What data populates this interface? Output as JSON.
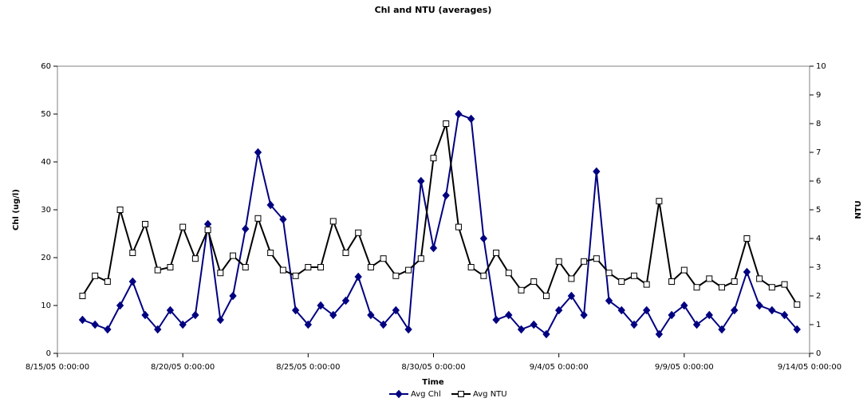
{
  "chart_data": {
    "type": "line",
    "title": "Chl and NTU (averages)",
    "x_label": "Time",
    "y_label": "Chl (ug/l)",
    "y2_label": "NTU",
    "xlim": [
      "8/15/05 0:00:00",
      "9/14/05 0:00:00"
    ],
    "xticks": [
      "8/15/05 0:00:00",
      "8/20/05 0:00:00",
      "8/25/05 0:00:00",
      "8/30/05 0:00:00",
      "9/4/05 0:00:00",
      "9/9/05 0:00:00",
      "9/14/05 0:00:00"
    ],
    "ylim": [
      0,
      60
    ],
    "yticks": [
      0,
      10,
      20,
      30,
      40,
      50,
      60
    ],
    "y2lim": [
      0,
      10
    ],
    "y2ticks": [
      0,
      1,
      2,
      3,
      4,
      5,
      6,
      7,
      8,
      9,
      10
    ],
    "x": [
      "8/16/05 0:00:00",
      "8/16/05 12:00:00",
      "8/17/05 0:00:00",
      "8/17/05 12:00:00",
      "8/18/05 0:00:00",
      "8/18/05 12:00:00",
      "8/19/05 0:00:00",
      "8/19/05 12:00:00",
      "8/20/05 0:00:00",
      "8/20/05 12:00:00",
      "8/21/05 0:00:00",
      "8/21/05 12:00:00",
      "8/22/05 0:00:00",
      "8/22/05 12:00:00",
      "8/23/05 0:00:00",
      "8/23/05 12:00:00",
      "8/24/05 0:00:00",
      "8/24/05 12:00:00",
      "8/25/05 0:00:00",
      "8/25/05 12:00:00",
      "8/26/05 0:00:00",
      "8/26/05 12:00:00",
      "8/27/05 0:00:00",
      "8/27/05 12:00:00",
      "8/28/05 0:00:00",
      "8/28/05 12:00:00",
      "8/29/05 0:00:00",
      "8/29/05 12:00:00",
      "8/30/05 0:00:00",
      "8/30/05 12:00:00",
      "8/31/05 0:00:00",
      "8/31/05 12:00:00",
      "9/1/05 0:00:00",
      "9/1/05 12:00:00",
      "9/2/05 0:00:00",
      "9/2/05 12:00:00",
      "9/3/05 0:00:00",
      "9/3/05 12:00:00",
      "9/4/05 0:00:00",
      "9/4/05 12:00:00",
      "9/5/05 0:00:00",
      "9/5/05 12:00:00",
      "9/6/05 0:00:00",
      "9/6/05 12:00:00",
      "9/7/05 0:00:00",
      "9/7/05 12:00:00",
      "9/8/05 0:00:00",
      "9/8/05 12:00:00",
      "9/9/05 0:00:00",
      "9/9/05 12:00:00",
      "9/10/05 0:00:00",
      "9/10/05 12:00:00",
      "9/11/05 0:00:00",
      "9/11/05 12:00:00",
      "9/12/05 0:00:00",
      "9/12/05 12:00:00",
      "9/13/05 0:00:00",
      "9/13/05 12:00:00"
    ],
    "series": [
      {
        "name": "Avg Chl",
        "color": "#000080",
        "marker": "diamond",
        "values": [
          7,
          6,
          5,
          10,
          15,
          8,
          5,
          9,
          6,
          8,
          27,
          7,
          12,
          26,
          42,
          31,
          28,
          9,
          6,
          10,
          8,
          11,
          16,
          8,
          6,
          9,
          5,
          36,
          22,
          33,
          50,
          49,
          24,
          7,
          8,
          5,
          6,
          4,
          9,
          12,
          8,
          38,
          11,
          9,
          6,
          9,
          4,
          8,
          10,
          6,
          8,
          5,
          9,
          17,
          10,
          9,
          8,
          5
        ]
      },
      {
        "name": "Avg NTU",
        "color": "#000000",
        "marker": "square",
        "axis": "y2",
        "values": [
          2.0,
          2.7,
          2.5,
          5.0,
          3.5,
          4.5,
          2.9,
          3.0,
          4.4,
          3.3,
          4.3,
          2.8,
          3.4,
          3.0,
          4.7,
          3.5,
          2.9,
          2.7,
          3.0,
          3.0,
          4.6,
          3.5,
          4.2,
          3.0,
          3.3,
          2.7,
          2.9,
          3.3,
          6.8,
          8.0,
          4.4,
          3.0,
          2.7,
          3.5,
          2.8,
          2.2,
          2.5,
          2.0,
          3.2,
          2.6,
          3.2,
          3.3,
          2.8,
          2.5,
          2.7,
          2.4,
          5.3,
          2.5,
          2.9,
          2.3,
          2.6,
          2.3,
          2.5,
          4.0,
          2.6,
          2.3,
          2.4,
          1.7
        ]
      }
    ]
  }
}
